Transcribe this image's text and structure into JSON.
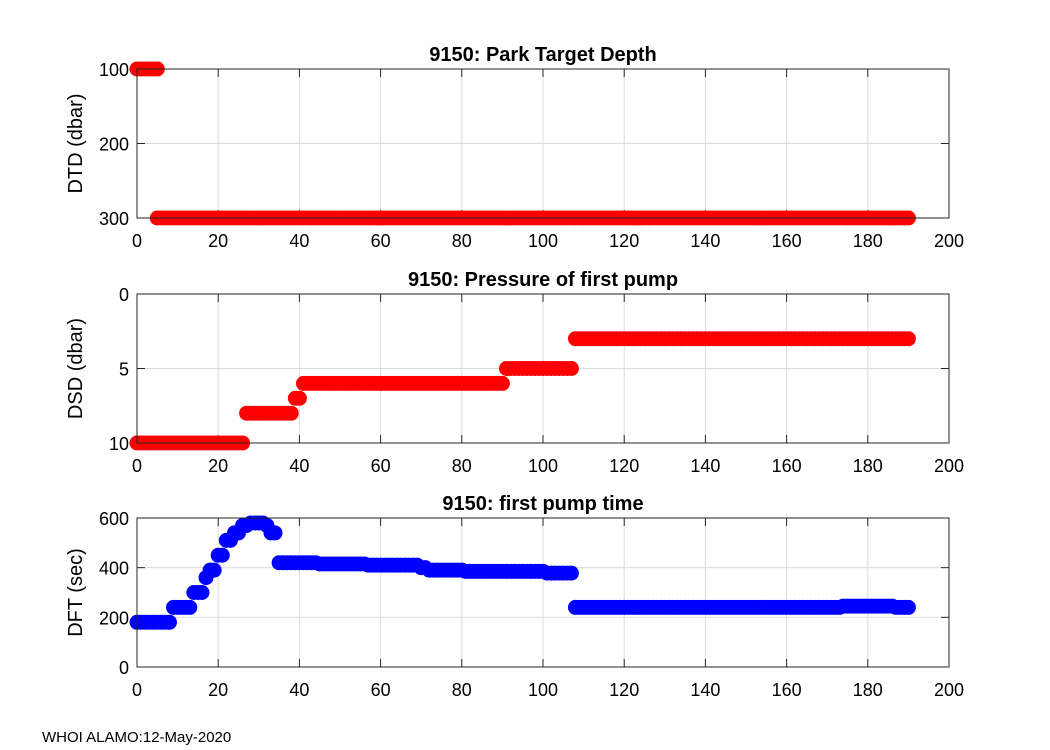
{
  "footer": "WHOI ALAMO:12-May-2020",
  "chart_data": [
    {
      "type": "scatter",
      "title": "9150: Park Target Depth",
      "ylabel": "DTD (dbar)",
      "xlim": [
        0,
        200
      ],
      "ylim": [
        100,
        300
      ],
      "y_reversed": true,
      "xticks": [
        0,
        20,
        40,
        60,
        80,
        100,
        120,
        140,
        160,
        180,
        200
      ],
      "yticks": [
        100,
        200,
        300
      ],
      "grid": true,
      "color": "#ff0000",
      "segments": [
        {
          "x_start": 0,
          "x_end": 5,
          "y": 100
        },
        {
          "x_start": 5,
          "x_end": 190,
          "y": 300
        }
      ]
    },
    {
      "type": "scatter",
      "title": "9150: Pressure of first pump",
      "ylabel": "DSD (dbar)",
      "xlim": [
        0,
        200
      ],
      "ylim": [
        0,
        10
      ],
      "y_reversed": true,
      "xticks": [
        0,
        20,
        40,
        60,
        80,
        100,
        120,
        140,
        160,
        180,
        200
      ],
      "yticks": [
        0,
        5,
        10
      ],
      "grid": true,
      "color": "#ff0000",
      "segments": [
        {
          "x_start": 0,
          "x_end": 26,
          "y": 10
        },
        {
          "x_start": 27,
          "x_end": 38,
          "y": 8
        },
        {
          "x_start": 39,
          "x_end": 40,
          "y": 7
        },
        {
          "x_start": 41,
          "x_end": 90,
          "y": 6
        },
        {
          "x_start": 91,
          "x_end": 107,
          "y": 5
        },
        {
          "x_start": 108,
          "x_end": 190,
          "y": 3
        }
      ]
    },
    {
      "type": "scatter",
      "title": "9150: first pump time",
      "ylabel": "DFT (sec)",
      "xlim": [
        0,
        200
      ],
      "ylim": [
        0,
        600
      ],
      "y_reversed": false,
      "xticks": [
        0,
        20,
        40,
        60,
        80,
        100,
        120,
        140,
        160,
        180,
        200
      ],
      "yticks": [
        0,
        200,
        400,
        600
      ],
      "grid": true,
      "color": "#0000ff",
      "points": [
        {
          "x": 0,
          "y": 180
        },
        {
          "x": 1,
          "y": 180
        },
        {
          "x": 2,
          "y": 180
        },
        {
          "x": 3,
          "y": 180
        },
        {
          "x": 4,
          "y": 180
        },
        {
          "x": 5,
          "y": 180
        },
        {
          "x": 6,
          "y": 180
        },
        {
          "x": 7,
          "y": 180
        },
        {
          "x": 8,
          "y": 180
        },
        {
          "x": 9,
          "y": 240
        },
        {
          "x": 10,
          "y": 240
        },
        {
          "x": 11,
          "y": 240
        },
        {
          "x": 12,
          "y": 240
        },
        {
          "x": 13,
          "y": 240
        },
        {
          "x": 14,
          "y": 300
        },
        {
          "x": 15,
          "y": 300
        },
        {
          "x": 16,
          "y": 300
        },
        {
          "x": 17,
          "y": 360
        },
        {
          "x": 18,
          "y": 390
        },
        {
          "x": 19,
          "y": 390
        },
        {
          "x": 20,
          "y": 450
        },
        {
          "x": 21,
          "y": 450
        },
        {
          "x": 22,
          "y": 510
        },
        {
          "x": 23,
          "y": 510
        },
        {
          "x": 24,
          "y": 540
        },
        {
          "x": 25,
          "y": 540
        },
        {
          "x": 26,
          "y": 570
        },
        {
          "x": 27,
          "y": 570
        },
        {
          "x": 28,
          "y": 580
        },
        {
          "x": 29,
          "y": 580
        },
        {
          "x": 30,
          "y": 580
        },
        {
          "x": 31,
          "y": 580
        },
        {
          "x": 32,
          "y": 570
        },
        {
          "x": 33,
          "y": 540
        },
        {
          "x": 34,
          "y": 540
        }
      ],
      "segments": [
        {
          "x_start": 35,
          "x_end": 44,
          "y": 420
        },
        {
          "x_start": 45,
          "x_end": 56,
          "y": 415
        },
        {
          "x_start": 57,
          "x_end": 69,
          "y": 410
        },
        {
          "x_start": 70,
          "x_end": 71,
          "y": 400
        },
        {
          "x_start": 72,
          "x_end": 80,
          "y": 390
        },
        {
          "x_start": 81,
          "x_end": 100,
          "y": 385
        },
        {
          "x_start": 101,
          "x_end": 107,
          "y": 378
        },
        {
          "x_start": 108,
          "x_end": 173,
          "y": 240
        },
        {
          "x_start": 174,
          "x_end": 186,
          "y": 245
        },
        {
          "x_start": 187,
          "x_end": 190,
          "y": 240
        }
      ]
    }
  ]
}
